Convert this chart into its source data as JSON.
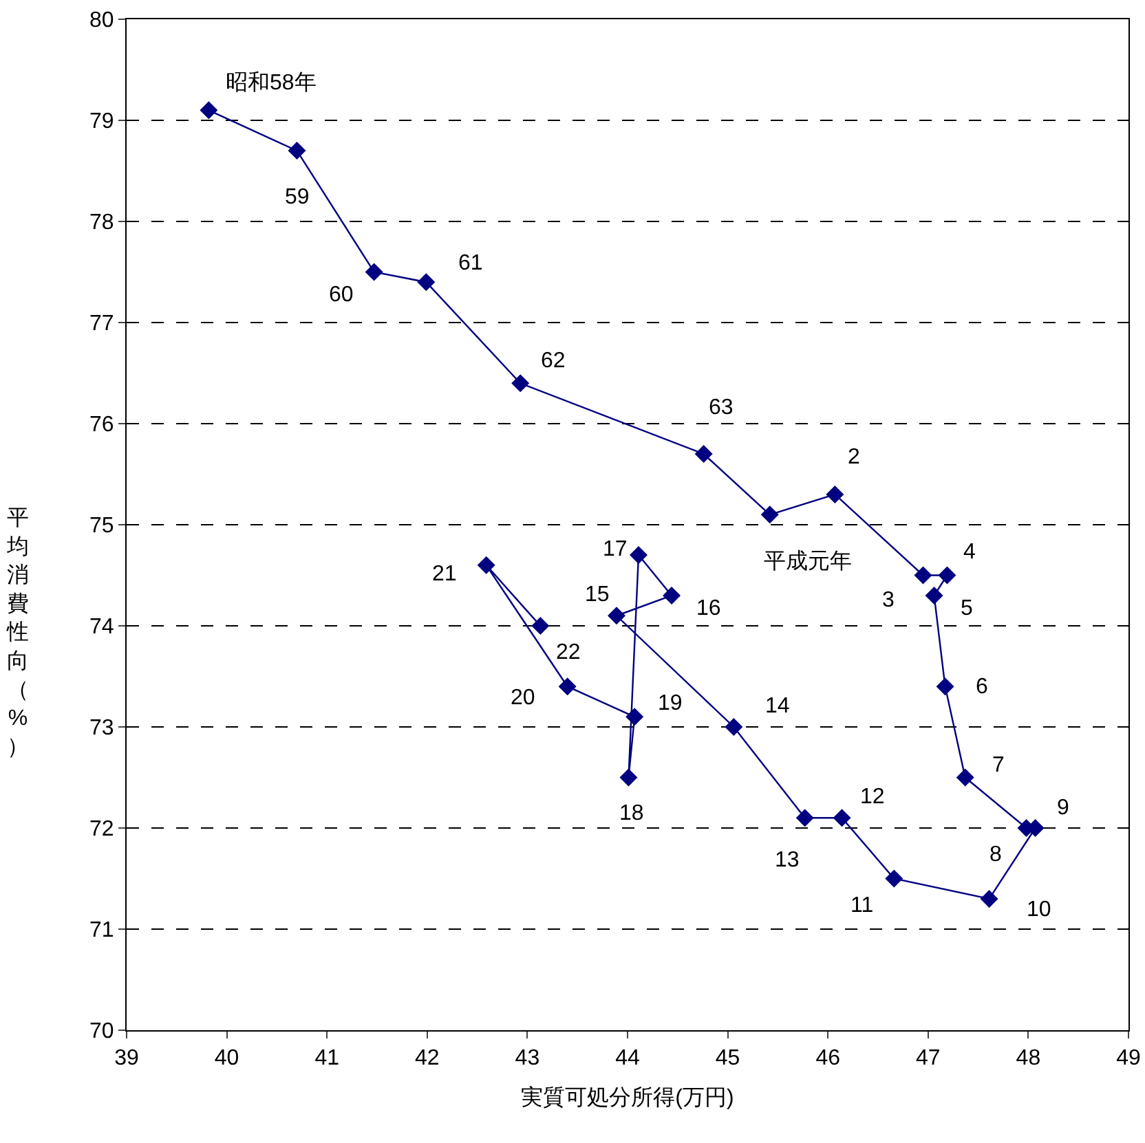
{
  "chart_data": {
    "type": "line",
    "xlabel": "実質可処分所得(万円)",
    "ylabel": "平均消費性向（%）",
    "x": [
      39.82,
      40.7,
      41.47,
      41.99,
      42.93,
      44.76,
      45.42,
      46.07,
      46.95,
      47.19,
      47.06,
      47.17,
      47.37,
      47.98,
      48.07,
      47.61,
      46.66,
      46.14,
      45.77,
      45.06,
      43.89,
      44.44,
      44.11,
      44.01,
      44.07,
      43.4,
      42.59,
      43.13
    ],
    "series": [
      {
        "color": "#000080",
        "values": [
          79.1,
          78.7,
          77.5,
          77.4,
          76.4,
          75.7,
          75.1,
          75.3,
          74.5,
          74.5,
          74.3,
          73.4,
          72.5,
          72.0,
          72.0,
          71.3,
          71.5,
          72.1,
          72.1,
          73.0,
          74.1,
          74.3,
          74.7,
          72.5,
          73.1,
          73.4,
          74.6,
          74.0
        ]
      }
    ],
    "annotations": [
      {
        "text": "昭和58年",
        "x": 39.82,
        "y": 79.1
      },
      {
        "text": "59",
        "x": 40.7,
        "y": 78.7
      },
      {
        "text": "60",
        "x": 41.47,
        "y": 77.5
      },
      {
        "text": "61",
        "x": 41.99,
        "y": 77.4
      },
      {
        "text": "62",
        "x": 42.93,
        "y": 76.4
      },
      {
        "text": "63",
        "x": 44.76,
        "y": 75.7
      },
      {
        "text": "平成元年",
        "x": 45.42,
        "y": 75.1
      },
      {
        "text": "2",
        "x": 46.07,
        "y": 75.3
      },
      {
        "text": "3",
        "x": 46.95,
        "y": 74.5
      },
      {
        "text": "4",
        "x": 47.19,
        "y": 74.5
      },
      {
        "text": "5",
        "x": 47.06,
        "y": 74.3
      },
      {
        "text": "6",
        "x": 47.17,
        "y": 73.4
      },
      {
        "text": "7",
        "x": 47.37,
        "y": 72.5
      },
      {
        "text": "8",
        "x": 47.98,
        "y": 72.0
      },
      {
        "text": "9",
        "x": 48.07,
        "y": 72.0
      },
      {
        "text": "10",
        "x": 47.61,
        "y": 71.3
      },
      {
        "text": "11",
        "x": 46.66,
        "y": 71.5
      },
      {
        "text": "12",
        "x": 46.14,
        "y": 72.1
      },
      {
        "text": "13",
        "x": 45.77,
        "y": 72.1
      },
      {
        "text": "14",
        "x": 45.06,
        "y": 73.0
      },
      {
        "text": "15",
        "x": 43.89,
        "y": 74.1
      },
      {
        "text": "16",
        "x": 44.44,
        "y": 74.3
      },
      {
        "text": "17",
        "x": 44.11,
        "y": 74.7
      },
      {
        "text": "18",
        "x": 44.01,
        "y": 72.5
      },
      {
        "text": "19",
        "x": 44.07,
        "y": 73.1
      },
      {
        "text": "20",
        "x": 43.4,
        "y": 73.4
      },
      {
        "text": "21",
        "x": 42.59,
        "y": 74.6
      },
      {
        "text": "22",
        "x": 43.13,
        "y": 74.0
      }
    ],
    "xlim": [
      39,
      49
    ],
    "xticks": [
      39,
      40,
      41,
      42,
      43,
      44,
      45,
      46,
      47,
      48,
      49
    ],
    "ylim": [
      70,
      80
    ],
    "yticks": [
      70,
      71,
      72,
      73,
      74,
      75,
      76,
      77,
      78,
      79,
      80
    ],
    "grid": "y",
    "marker": "diamond",
    "line_style": "solid"
  }
}
